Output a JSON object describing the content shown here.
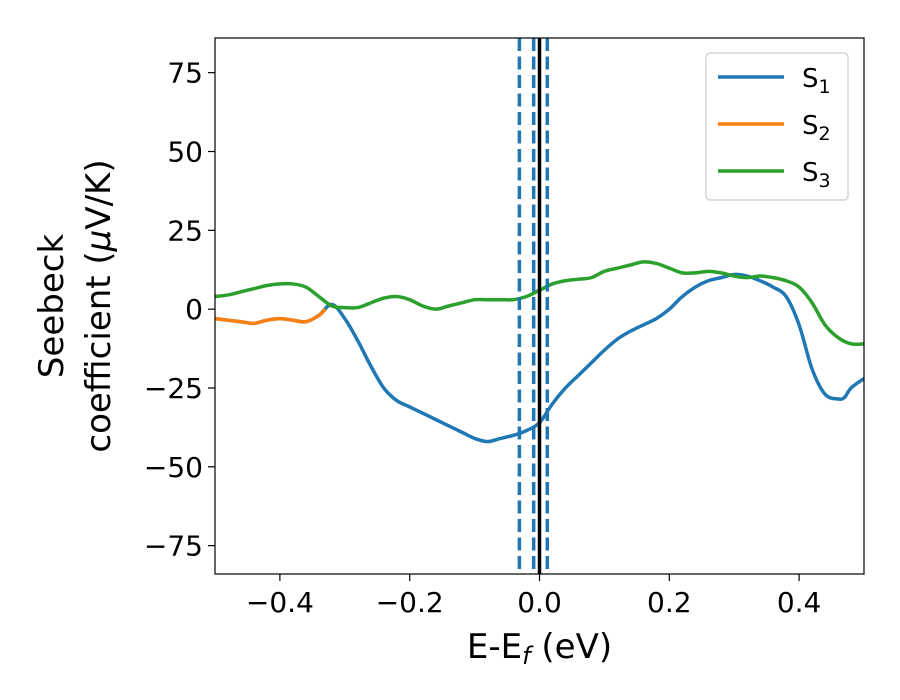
{
  "chart_data": {
    "type": "line",
    "xlabel": {
      "main": "E-E",
      "sub": "f",
      "suffix": " (eV)"
    },
    "ylabel": {
      "line1": "Seebeck",
      "line2_text": "coefficient  (",
      "line2_mu": "μ",
      "line2_unit": "V/K)"
    },
    "xlim": [
      -0.5,
      0.5
    ],
    "ylim": [
      -84,
      86
    ],
    "x_ticks": [
      {
        "value": -0.4,
        "label": "−0.4"
      },
      {
        "value": -0.2,
        "label": "−0.2"
      },
      {
        "value": 0.0,
        "label": "0.0"
      },
      {
        "value": 0.2,
        "label": "0.2"
      },
      {
        "value": 0.4,
        "label": "0.4"
      }
    ],
    "y_ticks": [
      {
        "value": 75,
        "label": "75"
      },
      {
        "value": 50,
        "label": "50"
      },
      {
        "value": 25,
        "label": "25"
      },
      {
        "value": 0,
        "label": "0"
      },
      {
        "value": -25,
        "label": "−25"
      },
      {
        "value": -50,
        "label": "−50"
      },
      {
        "value": -75,
        "label": "−75"
      }
    ],
    "grid": false,
    "legend": "top-right",
    "vlines": [
      {
        "x": -0.031,
        "style": "dashed",
        "color": "#1f77b4"
      },
      {
        "x": -0.009,
        "style": "dashed",
        "color": "#1f77b4"
      },
      {
        "x": 0.012,
        "style": "dashed",
        "color": "#1f77b4"
      },
      {
        "x": 0.0,
        "style": "solid",
        "color": "#000000"
      }
    ],
    "series": [
      {
        "name": "S",
        "sub": "1",
        "color": "#1f77b4",
        "x": [
          -0.5,
          -0.48,
          -0.46,
          -0.44,
          -0.42,
          -0.4,
          -0.38,
          -0.36,
          -0.34,
          -0.32,
          -0.3,
          -0.28,
          -0.26,
          -0.24,
          -0.22,
          -0.2,
          -0.18,
          -0.16,
          -0.14,
          -0.12,
          -0.1,
          -0.08,
          -0.06,
          -0.04,
          -0.02,
          0.0,
          0.02,
          0.04,
          0.06,
          0.08,
          0.1,
          0.12,
          0.14,
          0.16,
          0.18,
          0.2,
          0.22,
          0.24,
          0.26,
          0.28,
          0.3,
          0.32,
          0.34,
          0.36,
          0.38,
          0.4,
          0.42,
          0.44,
          0.46,
          0.47,
          0.48,
          0.5
        ],
        "y": [
          -3,
          -3.5,
          -4,
          -4.5,
          -3.5,
          -3,
          -3.5,
          -4,
          -2,
          1.5,
          -3,
          -10,
          -18,
          -25,
          -29,
          -31,
          -33,
          -35,
          -37,
          -39,
          -41,
          -42,
          -41,
          -40,
          -38.5,
          -36,
          -30,
          -25,
          -21,
          -17,
          -13,
          -9.5,
          -7,
          -5,
          -3,
          0,
          4,
          7,
          9,
          10,
          11,
          10.5,
          9,
          7,
          4,
          -5,
          -19,
          -27,
          -28.5,
          -28,
          -25,
          -22
        ]
      },
      {
        "name": "S",
        "sub": "2",
        "color": "#ff7f0e",
        "x": [
          -0.5,
          -0.48,
          -0.46,
          -0.44,
          -0.42,
          -0.4,
          -0.38,
          -0.36,
          -0.34,
          -0.33
        ],
        "y": [
          -3,
          -3.5,
          -4,
          -4.5,
          -3.5,
          -3,
          -3.5,
          -4,
          -2,
          0
        ]
      },
      {
        "name": "S",
        "sub": "3",
        "color": "#2ca02c",
        "x": [
          -0.5,
          -0.48,
          -0.46,
          -0.44,
          -0.42,
          -0.4,
          -0.38,
          -0.36,
          -0.34,
          -0.32,
          -0.3,
          -0.28,
          -0.26,
          -0.24,
          -0.22,
          -0.2,
          -0.18,
          -0.16,
          -0.14,
          -0.12,
          -0.1,
          -0.08,
          -0.06,
          -0.04,
          -0.02,
          0.0,
          0.02,
          0.04,
          0.06,
          0.08,
          0.1,
          0.12,
          0.14,
          0.16,
          0.18,
          0.2,
          0.22,
          0.24,
          0.26,
          0.28,
          0.3,
          0.32,
          0.34,
          0.36,
          0.38,
          0.4,
          0.42,
          0.44,
          0.46,
          0.48,
          0.5
        ],
        "y": [
          4,
          4.5,
          5.5,
          6.5,
          7.5,
          8,
          8,
          7,
          4,
          1,
          0.5,
          0.5,
          2,
          3.5,
          4,
          3,
          1,
          0,
          1,
          2,
          3,
          3,
          3,
          3,
          4,
          6,
          8,
          9,
          9.5,
          10,
          12,
          13,
          14,
          15,
          14.5,
          13,
          11.5,
          11.5,
          12,
          11.5,
          10.5,
          10,
          10.5,
          10,
          9,
          7,
          2,
          -5,
          -9,
          -11,
          -11
        ]
      }
    ]
  }
}
